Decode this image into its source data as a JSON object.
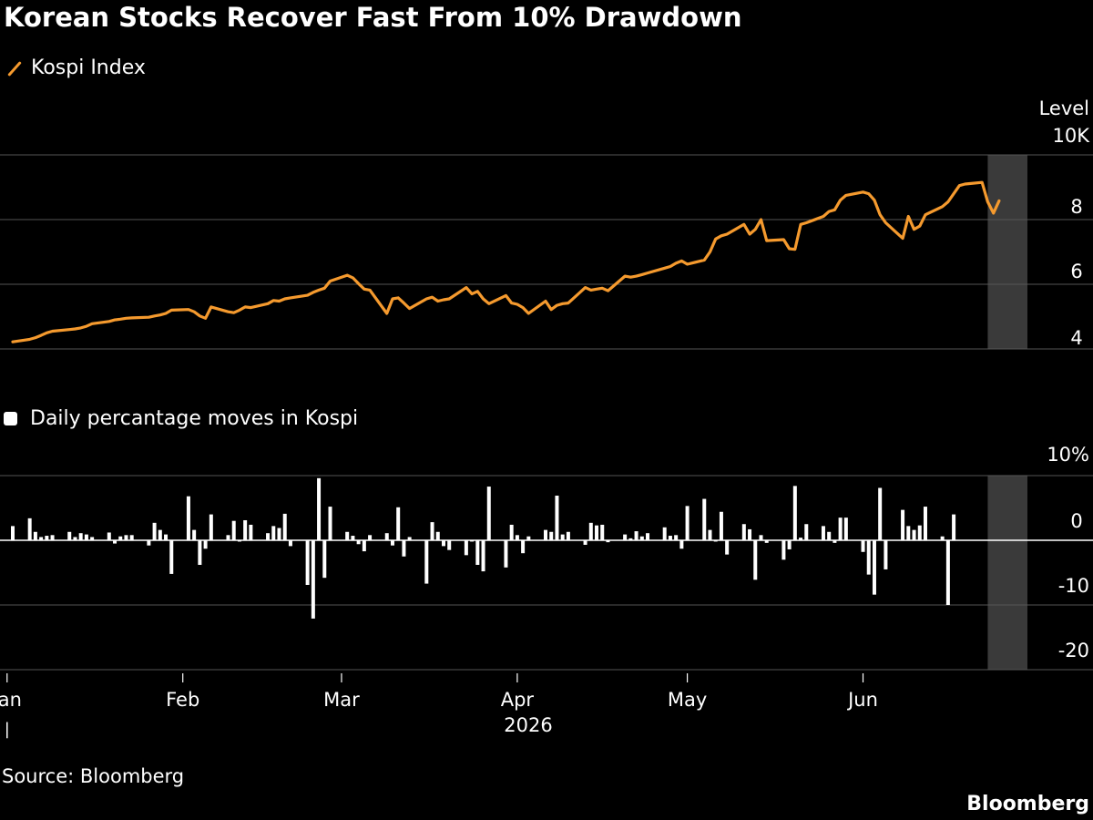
{
  "title": "Korean Stocks Recover Fast From 10% Drawdown",
  "legend_top": "Kospi Index",
  "legend_bottom": "Daily percantage moves in Kospi",
  "source": "Source: Bloomberg",
  "brand": "Bloomberg",
  "colors": {
    "line": "#f59a2e",
    "bars": "#ffffff",
    "grid": "#555555",
    "highlight": "#3a3a3a",
    "background": "#000000"
  },
  "chart_data": [
    {
      "type": "line",
      "series": [
        {
          "name": "Kospi Index"
        }
      ],
      "yunit": "Level",
      "yunit2": "10K",
      "ylim": [
        4,
        10
      ],
      "ytick_labels": [
        "10K",
        "8",
        "6",
        "4"
      ],
      "ticks": [
        10,
        8,
        6,
        4
      ],
      "x_start": "2026-01-02",
      "highlight": [
        "2026-06-23",
        "2026-06-30"
      ],
      "points": [
        [
          "01-02",
          4.22
        ],
        [
          "01-05",
          4.3
        ],
        [
          "01-06",
          4.35
        ],
        [
          "01-07",
          4.42
        ],
        [
          "01-08",
          4.5
        ],
        [
          "01-09",
          4.55
        ],
        [
          "01-12",
          4.6
        ],
        [
          "01-13",
          4.62
        ],
        [
          "01-14",
          4.65
        ],
        [
          "01-15",
          4.7
        ],
        [
          "01-16",
          4.78
        ],
        [
          "01-19",
          4.85
        ],
        [
          "01-20",
          4.9
        ],
        [
          "01-21",
          4.92
        ],
        [
          "01-22",
          4.95
        ],
        [
          "01-23",
          4.96
        ],
        [
          "01-26",
          4.98
        ],
        [
          "01-27",
          5.02
        ],
        [
          "01-28",
          5.05
        ],
        [
          "01-29",
          5.1
        ],
        [
          "01-30",
          5.2
        ],
        [
          "02-02",
          5.22
        ],
        [
          "02-03",
          5.15
        ],
        [
          "02-04",
          5.02
        ],
        [
          "02-05",
          4.95
        ],
        [
          "02-06",
          5.3
        ],
        [
          "02-09",
          5.15
        ],
        [
          "02-10",
          5.12
        ],
        [
          "02-11",
          5.2
        ],
        [
          "02-12",
          5.3
        ],
        [
          "02-13",
          5.28
        ],
        [
          "02-16",
          5.4
        ],
        [
          "02-17",
          5.5
        ],
        [
          "02-18",
          5.48
        ],
        [
          "02-19",
          5.55
        ],
        [
          "02-20",
          5.58
        ],
        [
          "02-23",
          5.66
        ],
        [
          "02-24",
          5.75
        ],
        [
          "02-25",
          5.82
        ],
        [
          "02-26",
          5.88
        ],
        [
          "02-27",
          6.1
        ],
        [
          "03-02",
          6.28
        ],
        [
          "03-03",
          6.2
        ],
        [
          "03-04",
          6.02
        ],
        [
          "03-05",
          5.85
        ],
        [
          "03-06",
          5.82
        ],
        [
          "03-09",
          5.1
        ],
        [
          "03-10",
          5.55
        ],
        [
          "03-11",
          5.58
        ],
        [
          "03-12",
          5.42
        ],
        [
          "03-13",
          5.25
        ],
        [
          "03-16",
          5.55
        ],
        [
          "03-17",
          5.6
        ],
        [
          "03-18",
          5.48
        ],
        [
          "03-19",
          5.52
        ],
        [
          "03-20",
          5.55
        ],
        [
          "03-23",
          5.9
        ],
        [
          "03-24",
          5.7
        ],
        [
          "03-25",
          5.78
        ],
        [
          "03-26",
          5.55
        ],
        [
          "03-27",
          5.4
        ],
        [
          "03-30",
          5.65
        ],
        [
          "03-31",
          5.42
        ],
        [
          "04-01",
          5.38
        ],
        [
          "04-02",
          5.28
        ],
        [
          "04-03",
          5.1
        ],
        [
          "04-06",
          5.48
        ],
        [
          "04-07",
          5.22
        ],
        [
          "04-08",
          5.35
        ],
        [
          "04-09",
          5.4
        ],
        [
          "04-10",
          5.42
        ],
        [
          "04-13",
          5.9
        ],
        [
          "04-14",
          5.82
        ],
        [
          "04-15",
          5.85
        ],
        [
          "04-16",
          5.88
        ],
        [
          "04-17",
          5.8
        ],
        [
          "04-20",
          6.25
        ],
        [
          "04-21",
          6.22
        ],
        [
          "04-22",
          6.25
        ],
        [
          "04-23",
          6.3
        ],
        [
          "04-24",
          6.35
        ],
        [
          "04-27",
          6.5
        ],
        [
          "04-28",
          6.55
        ],
        [
          "04-29",
          6.65
        ],
        [
          "04-30",
          6.72
        ],
        [
          "05-01",
          6.62
        ],
        [
          "05-04",
          6.75
        ],
        [
          "05-05",
          7.0
        ],
        [
          "05-06",
          7.4
        ],
        [
          "05-07",
          7.5
        ],
        [
          "05-08",
          7.55
        ],
        [
          "05-11",
          7.85
        ],
        [
          "05-12",
          7.55
        ],
        [
          "05-13",
          7.7
        ],
        [
          "05-14",
          8.0
        ],
        [
          "05-15",
          7.35
        ],
        [
          "05-18",
          7.38
        ],
        [
          "05-19",
          7.1
        ],
        [
          "05-20",
          7.08
        ],
        [
          "05-21",
          7.85
        ],
        [
          "05-22",
          7.9
        ],
        [
          "05-25",
          8.1
        ],
        [
          "05-26",
          8.25
        ],
        [
          "05-27",
          8.3
        ],
        [
          "05-28",
          8.6
        ],
        [
          "05-29",
          8.75
        ],
        [
          "06-01",
          8.85
        ],
        [
          "06-02",
          8.8
        ],
        [
          "06-03",
          8.6
        ],
        [
          "06-04",
          8.15
        ],
        [
          "06-05",
          7.9
        ],
        [
          "06-08",
          7.42
        ],
        [
          "06-09",
          8.1
        ],
        [
          "06-10",
          7.7
        ],
        [
          "06-11",
          7.8
        ],
        [
          "06-12",
          8.15
        ],
        [
          "06-15",
          8.4
        ],
        [
          "06-16",
          8.55
        ],
        [
          "06-17",
          8.8
        ],
        [
          "06-18",
          9.05
        ],
        [
          "06-19",
          9.1
        ],
        [
          "06-22",
          9.15
        ],
        [
          "06-23",
          8.55
        ],
        [
          "06-24",
          8.2
        ],
        [
          "06-25",
          8.58
        ]
      ]
    },
    {
      "type": "bar",
      "series": [
        {
          "name": "Daily percantage moves in Kospi"
        }
      ],
      "yunit": "10%",
      "ylim": [
        -20,
        10
      ],
      "ytick_labels": [
        "10%",
        "0",
        "-10",
        "-20"
      ],
      "ticks": [
        10,
        0,
        -10,
        -20
      ],
      "xlabel": "2026",
      "x_tick_labels": [
        "Jan",
        "Feb",
        "Mar",
        "Apr",
        "May",
        "Jun"
      ],
      "x_ticks": [
        "2026-01-01",
        "2026-02-01",
        "2026-03-01",
        "2026-04-01",
        "2026-05-01",
        "2026-06-01"
      ],
      "x_end": "2026-06-30",
      "highlight": [
        "2026-06-23",
        "2026-06-30"
      ],
      "points": [
        [
          "01-02",
          2.2
        ],
        [
          "01-05",
          3.4
        ],
        [
          "01-06",
          1.3
        ],
        [
          "01-07",
          0.5
        ],
        [
          "01-08",
          0.7
        ],
        [
          "01-09",
          0.8
        ],
        [
          "01-12",
          1.3
        ],
        [
          "01-13",
          0.5
        ],
        [
          "01-14",
          1.1
        ],
        [
          "01-15",
          0.9
        ],
        [
          "01-16",
          0.5
        ],
        [
          "01-19",
          1.2
        ],
        [
          "01-20",
          -0.5
        ],
        [
          "01-21",
          0.6
        ],
        [
          "01-22",
          0.8
        ],
        [
          "01-23",
          0.8
        ],
        [
          "01-26",
          -0.8
        ],
        [
          "01-27",
          2.7
        ],
        [
          "01-28",
          1.6
        ],
        [
          "01-29",
          0.9
        ],
        [
          "01-30",
          -5.2
        ],
        [
          "02-02",
          6.8
        ],
        [
          "02-03",
          1.6
        ],
        [
          "02-04",
          -3.8
        ],
        [
          "02-05",
          -1.3
        ],
        [
          "02-06",
          4.0
        ],
        [
          "02-09",
          0.8
        ],
        [
          "02-10",
          3.0
        ],
        [
          "02-11",
          -0.2
        ],
        [
          "02-12",
          3.1
        ],
        [
          "02-13",
          2.4
        ],
        [
          "02-16",
          1.1
        ],
        [
          "02-17",
          2.2
        ],
        [
          "02-18",
          1.9
        ],
        [
          "02-19",
          4.1
        ],
        [
          "02-20",
          -0.9
        ],
        [
          "02-23",
          -6.9
        ],
        [
          "02-24",
          -12.1
        ],
        [
          "02-25",
          9.6
        ],
        [
          "02-26",
          -5.8
        ],
        [
          "02-27",
          5.2
        ],
        [
          "03-02",
          1.3
        ],
        [
          "03-03",
          0.7
        ],
        [
          "03-04",
          -0.6
        ],
        [
          "03-05",
          -1.7
        ],
        [
          "03-06",
          0.8
        ],
        [
          "03-09",
          1.1
        ],
        [
          "03-10",
          -0.8
        ],
        [
          "03-11",
          5.1
        ],
        [
          "03-12",
          -2.5
        ],
        [
          "03-13",
          0.5
        ],
        [
          "03-16",
          -6.7
        ],
        [
          "03-17",
          2.8
        ],
        [
          "03-18",
          1.3
        ],
        [
          "03-19",
          -0.9
        ],
        [
          "03-20",
          -1.5
        ],
        [
          "03-23",
          -2.3
        ],
        [
          "03-24",
          -0.2
        ],
        [
          "03-25",
          -3.8
        ],
        [
          "03-26",
          -4.8
        ],
        [
          "03-27",
          8.3
        ],
        [
          "03-30",
          -4.2
        ],
        [
          "03-31",
          2.4
        ],
        [
          "04-01",
          0.8
        ],
        [
          "04-02",
          -2.0
        ],
        [
          "04-03",
          0.6
        ],
        [
          "04-06",
          1.6
        ],
        [
          "04-07",
          1.3
        ],
        [
          "04-08",
          6.9
        ],
        [
          "04-09",
          0.9
        ],
        [
          "04-10",
          1.3
        ],
        [
          "04-13",
          -0.7
        ],
        [
          "04-14",
          2.7
        ],
        [
          "04-15",
          2.3
        ],
        [
          "04-16",
          2.4
        ],
        [
          "04-17",
          -0.3
        ],
        [
          "04-20",
          0.9
        ],
        [
          "04-21",
          0.3
        ],
        [
          "04-22",
          1.4
        ],
        [
          "04-23",
          0.6
        ],
        [
          "04-24",
          1.1
        ],
        [
          "04-27",
          2.0
        ],
        [
          "04-28",
          0.7
        ],
        [
          "04-29",
          0.8
        ],
        [
          "04-30",
          -1.3
        ],
        [
          "05-01",
          5.3
        ],
        [
          "05-04",
          6.4
        ],
        [
          "05-05",
          1.6
        ],
        [
          "05-06",
          -0.2
        ],
        [
          "05-07",
          4.4
        ],
        [
          "05-08",
          -2.2
        ],
        [
          "05-11",
          2.5
        ],
        [
          "05-12",
          1.7
        ],
        [
          "05-13",
          -6.1
        ],
        [
          "05-14",
          0.8
        ],
        [
          "05-15",
          -0.4
        ],
        [
          "05-18",
          -3.0
        ],
        [
          "05-19",
          -1.4
        ],
        [
          "05-20",
          8.4
        ],
        [
          "05-21",
          0.4
        ],
        [
          "05-22",
          2.5
        ],
        [
          "05-25",
          2.2
        ],
        [
          "05-26",
          1.3
        ],
        [
          "05-27",
          -0.4
        ],
        [
          "05-28",
          3.5
        ],
        [
          "05-29",
          3.5
        ],
        [
          "06-01",
          -1.8
        ],
        [
          "06-02",
          -5.3
        ],
        [
          "06-03",
          -8.4
        ],
        [
          "06-04",
          8.1
        ],
        [
          "06-05",
          -4.5
        ],
        [
          "06-08",
          4.7
        ],
        [
          "06-09",
          2.2
        ],
        [
          "06-10",
          1.6
        ],
        [
          "06-11",
          2.3
        ],
        [
          "06-12",
          5.2
        ],
        [
          "06-15",
          0.6
        ],
        [
          "06-16",
          -10.0
        ],
        [
          "06-17",
          4.0
        ]
      ]
    }
  ]
}
